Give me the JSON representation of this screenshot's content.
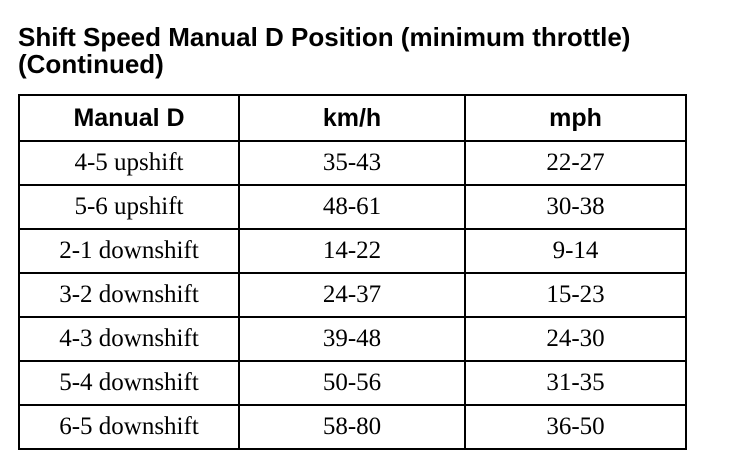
{
  "document": {
    "title": "Shift Speed Manual D Position (minimum throttle) (Continued)",
    "table": {
      "headers": [
        "Manual D",
        "km/h",
        "mph"
      ],
      "rows": [
        [
          "4-5 upshift",
          "35-43",
          "22-27"
        ],
        [
          "5-6 upshift",
          "48-61",
          "30-38"
        ],
        [
          "2-1 downshift",
          "14-22",
          "9-14"
        ],
        [
          "3-2 downshift",
          "24-37",
          "15-23"
        ],
        [
          "4-3 downshift",
          "39-48",
          "24-30"
        ],
        [
          "5-4 downshift",
          "50-56",
          "31-35"
        ],
        [
          "6-5 downshift",
          "58-80",
          "36-50"
        ]
      ]
    }
  }
}
